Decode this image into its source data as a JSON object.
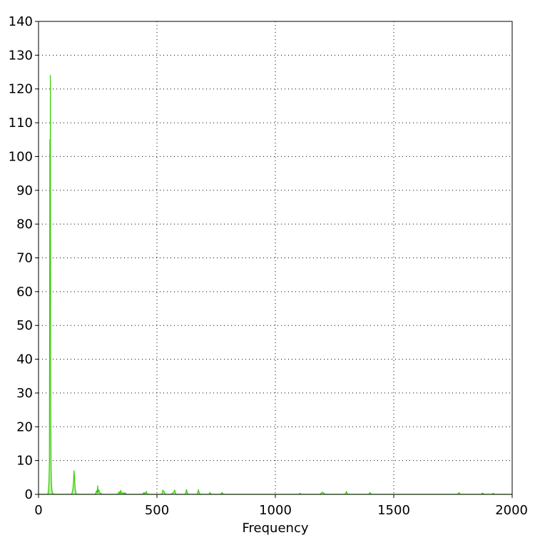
{
  "chart_data": {
    "type": "line",
    "title": "",
    "xlabel": "Frequency",
    "ylabel": "",
    "xlim": [
      0,
      2000
    ],
    "ylim": [
      0,
      140
    ],
    "xticks": [
      0,
      500,
      1000,
      1500,
      2000
    ],
    "xtick_labels": [
      "0",
      "500",
      "1000",
      "1500",
      "2000"
    ],
    "yticks": [
      0,
      10,
      20,
      30,
      40,
      50,
      60,
      70,
      80,
      90,
      100,
      110,
      120,
      130,
      140
    ],
    "ytick_labels": [
      "0",
      "10",
      "20",
      "30",
      "40",
      "50",
      "60",
      "70",
      "80",
      "90",
      "100",
      "110",
      "120",
      "130",
      "140"
    ],
    "grid": true,
    "grid_style": "dotted",
    "line_color": "#33cc00",
    "series": [
      {
        "x": [
          0,
          40,
          44,
          46,
          48,
          49,
          50,
          51,
          52,
          53,
          55,
          57,
          60,
          64,
          140,
          145,
          148,
          150,
          152,
          155,
          160,
          240,
          245,
          248,
          250,
          252,
          255,
          258,
          262,
          268,
          335,
          340,
          344,
          347,
          350,
          355,
          360,
          365,
          370,
          440,
          445,
          448,
          455,
          460,
          520,
          525,
          530,
          535,
          560,
          570,
          575,
          580,
          620,
          625,
          628,
          632,
          670,
          675,
          678,
          682,
          720,
          724,
          728,
          770,
          775,
          780,
          1100,
          1104,
          1108,
          1190,
          1195,
          1200,
          1205,
          1210,
          1295,
          1300,
          1305,
          1395,
          1400,
          1405,
          1770,
          1775,
          1780,
          1870,
          1875,
          1880,
          1915,
          1920,
          1925,
          2000
        ],
        "y": [
          0,
          0,
          3.5,
          10,
          105,
          60,
          124,
          40,
          20,
          9,
          3,
          1,
          0.3,
          0,
          0,
          1.5,
          4,
          7,
          5,
          1.5,
          0,
          0,
          1,
          0.5,
          2.5,
          0.8,
          1.2,
          0.5,
          0.3,
          0,
          0,
          0.7,
          0.2,
          1.2,
          0.4,
          0.5,
          0.2,
          0.5,
          0,
          0,
          0.5,
          0.2,
          0.8,
          0,
          0,
          1.2,
          0.8,
          0,
          0,
          0.6,
          1.2,
          0,
          0,
          1.4,
          0.5,
          0,
          0,
          1.3,
          0.6,
          0,
          0,
          0.5,
          0,
          0,
          0.5,
          0,
          0,
          0.3,
          0,
          0,
          0.5,
          0.6,
          0.3,
          0,
          0,
          0.8,
          0,
          0,
          0.5,
          0,
          0,
          0.5,
          0,
          0,
          0.4,
          0,
          0,
          0.3,
          0,
          0
        ]
      }
    ]
  }
}
